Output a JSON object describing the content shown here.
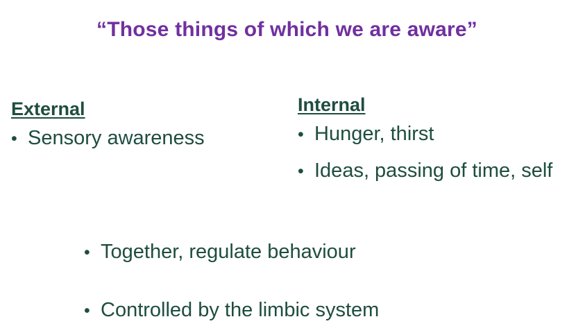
{
  "slide": {
    "title": "“Those things of which we are aware”",
    "external": {
      "heading": "External",
      "items": [
        "Sensory awareness"
      ]
    },
    "internal": {
      "heading": "Internal",
      "items": [
        "Hunger, thirst",
        "Ideas, passing of time, self"
      ]
    },
    "bottom_items": [
      "Together, regulate behaviour",
      "Controlled by the limbic system"
    ],
    "bullet_glyph": "•"
  },
  "colors": {
    "title": "#7030a0",
    "text": "#1e4d3f",
    "background": "#ffffff"
  }
}
